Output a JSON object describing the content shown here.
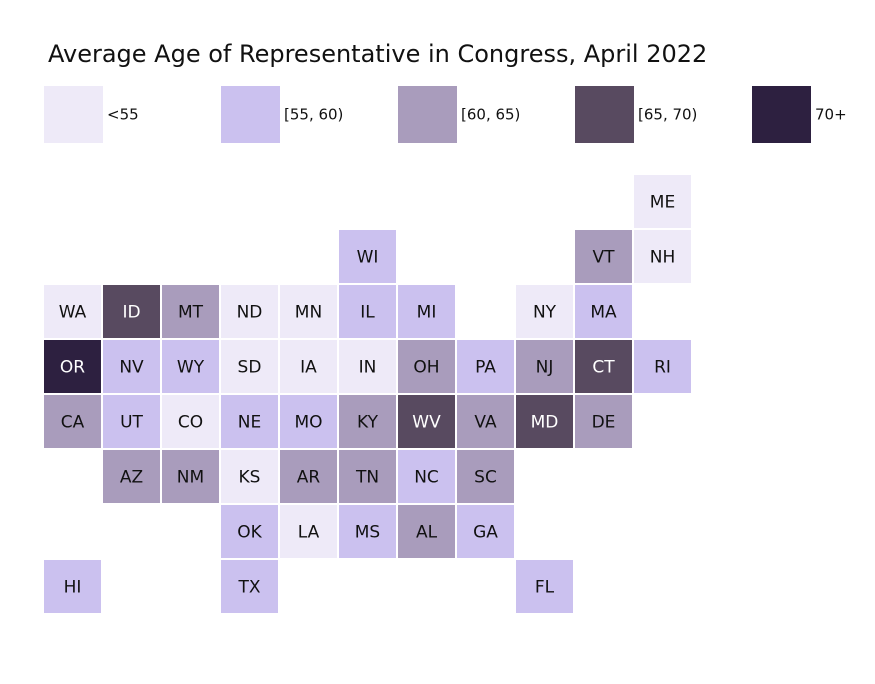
{
  "chart_data": {
    "type": "heatmap",
    "subtype": "state-tile-grid-map",
    "title": "Average Age of Representative in Congress, April 2022",
    "legend": {
      "placement": "top",
      "bins": [
        {
          "label": "<55",
          "color": "#eeeaf8"
        },
        {
          "label": "[55, 60)",
          "color": "#cbc1ef"
        },
        {
          "label": "[60, 65)",
          "color": "#a99cbc"
        },
        {
          "label": "[65, 70)",
          "color": "#584a60"
        },
        {
          "label": "70+",
          "color": "#2d2040"
        }
      ]
    },
    "states": [
      {
        "state": "ME",
        "row": 0,
        "col": 10,
        "bin": 0
      },
      {
        "state": "WI",
        "row": 1,
        "col": 5,
        "bin": 1
      },
      {
        "state": "VT",
        "row": 1,
        "col": 9,
        "bin": 2
      },
      {
        "state": "NH",
        "row": 1,
        "col": 10,
        "bin": 0
      },
      {
        "state": "WA",
        "row": 2,
        "col": 0,
        "bin": 0
      },
      {
        "state": "ID",
        "row": 2,
        "col": 1,
        "bin": 3
      },
      {
        "state": "MT",
        "row": 2,
        "col": 2,
        "bin": 2
      },
      {
        "state": "ND",
        "row": 2,
        "col": 3,
        "bin": 0
      },
      {
        "state": "MN",
        "row": 2,
        "col": 4,
        "bin": 0
      },
      {
        "state": "IL",
        "row": 2,
        "col": 5,
        "bin": 1
      },
      {
        "state": "MI",
        "row": 2,
        "col": 6,
        "bin": 1
      },
      {
        "state": "NY",
        "row": 2,
        "col": 8,
        "bin": 0
      },
      {
        "state": "MA",
        "row": 2,
        "col": 9,
        "bin": 1
      },
      {
        "state": "OR",
        "row": 3,
        "col": 0,
        "bin": 4
      },
      {
        "state": "NV",
        "row": 3,
        "col": 1,
        "bin": 1
      },
      {
        "state": "WY",
        "row": 3,
        "col": 2,
        "bin": 1
      },
      {
        "state": "SD",
        "row": 3,
        "col": 3,
        "bin": 0
      },
      {
        "state": "IA",
        "row": 3,
        "col": 4,
        "bin": 0
      },
      {
        "state": "IN",
        "row": 3,
        "col": 5,
        "bin": 0
      },
      {
        "state": "OH",
        "row": 3,
        "col": 6,
        "bin": 2
      },
      {
        "state": "PA",
        "row": 3,
        "col": 7,
        "bin": 1
      },
      {
        "state": "NJ",
        "row": 3,
        "col": 8,
        "bin": 2
      },
      {
        "state": "CT",
        "row": 3,
        "col": 9,
        "bin": 3
      },
      {
        "state": "RI",
        "row": 3,
        "col": 10,
        "bin": 1
      },
      {
        "state": "CA",
        "row": 4,
        "col": 0,
        "bin": 2
      },
      {
        "state": "UT",
        "row": 4,
        "col": 1,
        "bin": 1
      },
      {
        "state": "CO",
        "row": 4,
        "col": 2,
        "bin": 0
      },
      {
        "state": "NE",
        "row": 4,
        "col": 3,
        "bin": 1
      },
      {
        "state": "MO",
        "row": 4,
        "col": 4,
        "bin": 1
      },
      {
        "state": "KY",
        "row": 4,
        "col": 5,
        "bin": 2
      },
      {
        "state": "WV",
        "row": 4,
        "col": 6,
        "bin": 3
      },
      {
        "state": "VA",
        "row": 4,
        "col": 7,
        "bin": 2
      },
      {
        "state": "MD",
        "row": 4,
        "col": 8,
        "bin": 3
      },
      {
        "state": "DE",
        "row": 4,
        "col": 9,
        "bin": 2
      },
      {
        "state": "AZ",
        "row": 5,
        "col": 1,
        "bin": 2
      },
      {
        "state": "NM",
        "row": 5,
        "col": 2,
        "bin": 2
      },
      {
        "state": "KS",
        "row": 5,
        "col": 3,
        "bin": 0
      },
      {
        "state": "AR",
        "row": 5,
        "col": 4,
        "bin": 2
      },
      {
        "state": "TN",
        "row": 5,
        "col": 5,
        "bin": 2
      },
      {
        "state": "NC",
        "row": 5,
        "col": 6,
        "bin": 1
      },
      {
        "state": "SC",
        "row": 5,
        "col": 7,
        "bin": 2
      },
      {
        "state": "OK",
        "row": 6,
        "col": 3,
        "bin": 1
      },
      {
        "state": "LA",
        "row": 6,
        "col": 4,
        "bin": 0
      },
      {
        "state": "MS",
        "row": 6,
        "col": 5,
        "bin": 1
      },
      {
        "state": "AL",
        "row": 6,
        "col": 6,
        "bin": 2
      },
      {
        "state": "GA",
        "row": 6,
        "col": 7,
        "bin": 1
      },
      {
        "state": "HI",
        "row": 7,
        "col": 0,
        "bin": 1
      },
      {
        "state": "TX",
        "row": 7,
        "col": 3,
        "bin": 1
      },
      {
        "state": "FL",
        "row": 7,
        "col": 8,
        "bin": 1
      }
    ]
  }
}
